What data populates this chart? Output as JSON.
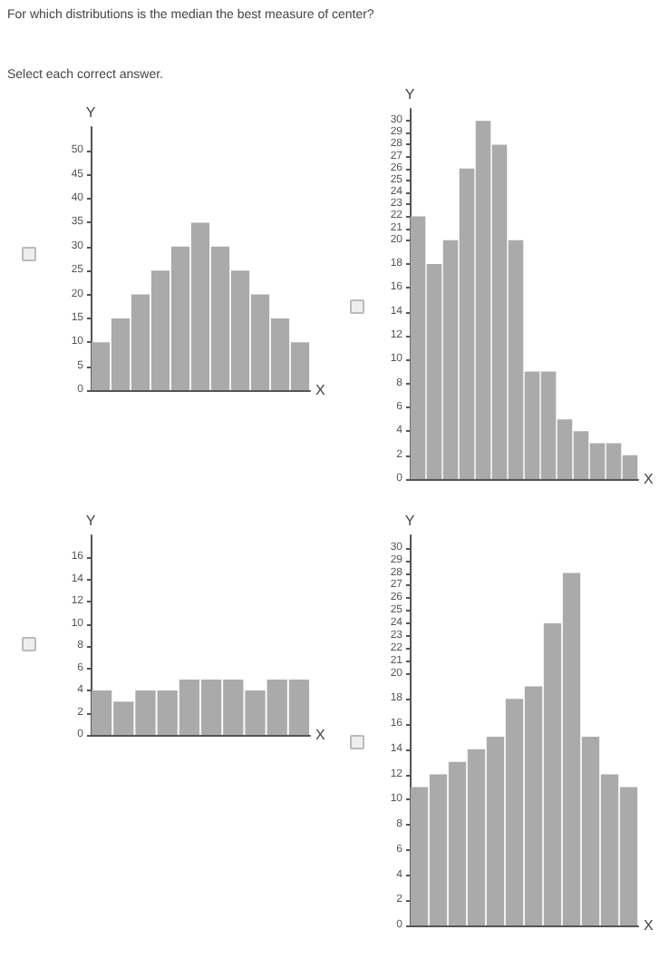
{
  "chart_data": [
    {
      "type": "bar",
      "title": "For which distributions is the median the best measure of center?",
      "subtitle": "Select each correct answer.",
      "xlabel": "X",
      "ylabel": "Y",
      "categories": [
        null,
        null,
        null,
        null,
        null,
        null,
        null,
        null,
        null,
        null,
        null
      ],
      "values": [
        10,
        15,
        20,
        25,
        30,
        35,
        30,
        25,
        20,
        15,
        10
      ],
      "color": "#aaaaaa",
      "ylim": [
        0,
        55
      ],
      "yticks": [
        0,
        5,
        10,
        15,
        20,
        25,
        30,
        35,
        40,
        45,
        50
      ],
      "grid": false
    },
    {
      "type": "bar",
      "xlabel": "X",
      "ylabel": "Y",
      "categories": [
        null,
        null,
        null,
        null,
        null,
        null,
        null,
        null,
        null,
        null,
        null,
        null,
        null,
        null
      ],
      "values": [
        22,
        18,
        20,
        26,
        30,
        28,
        20,
        9,
        9,
        5,
        4,
        3,
        3,
        2
      ],
      "color": "#aaaaaa",
      "ylim": [
        0,
        31
      ],
      "yticks": [
        0,
        2,
        4,
        6,
        8,
        10,
        12,
        14,
        16,
        18,
        20,
        21,
        22,
        23,
        24,
        25,
        26,
        27,
        28,
        29,
        30
      ],
      "grid": false
    },
    {
      "type": "bar",
      "xlabel": "X",
      "ylabel": "Y",
      "categories": [
        null,
        null,
        null,
        null,
        null,
        null,
        null,
        null,
        null,
        null
      ],
      "values": [
        4,
        3,
        4,
        4,
        5,
        5,
        5,
        4,
        5,
        5
      ],
      "color": "#aaaaaa",
      "ylim": [
        0,
        18
      ],
      "yticks": [
        0,
        2,
        4,
        6,
        8,
        10,
        12,
        14,
        16
      ],
      "grid": false
    },
    {
      "type": "bar",
      "xlabel": "X",
      "ylabel": "Y",
      "categories": [
        null,
        null,
        null,
        null,
        null,
        null,
        null,
        null,
        null,
        null,
        null,
        null
      ],
      "values": [
        11,
        12,
        13,
        14,
        15,
        18,
        19,
        24,
        28,
        15,
        12,
        11
      ],
      "color": "#aaaaaa",
      "ylim": [
        0,
        31
      ],
      "yticks": [
        0,
        2,
        4,
        6,
        8,
        10,
        12,
        14,
        16,
        18,
        20,
        21,
        22,
        23,
        24,
        25,
        26,
        27,
        28,
        29,
        30
      ],
      "grid": false
    }
  ]
}
